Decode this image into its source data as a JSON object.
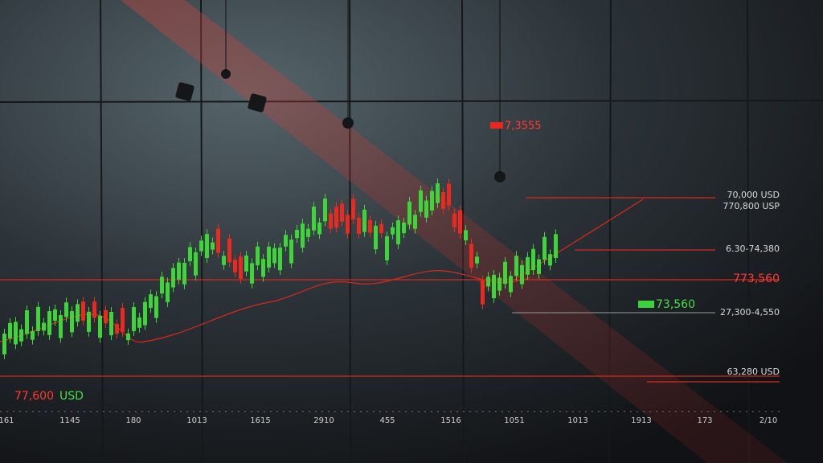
{
  "labels": {
    "top_price": "7,3555",
    "level_1": "70,000 USD",
    "level_2": "770,800 USP",
    "level_3": "6.30-74,380",
    "level_4": "773,560",
    "level_5": "73,560",
    "level_6": "27,300-4,550",
    "level_7": "63,280 USD",
    "bottom_price": "77,600",
    "bottom_unit": "USD"
  },
  "x_labels": [
    "161",
    "1145",
    "180",
    "1013",
    "1615",
    "2910",
    "455",
    "1516",
    "1051",
    "1013",
    "1913",
    "173",
    "2/10"
  ]
}
